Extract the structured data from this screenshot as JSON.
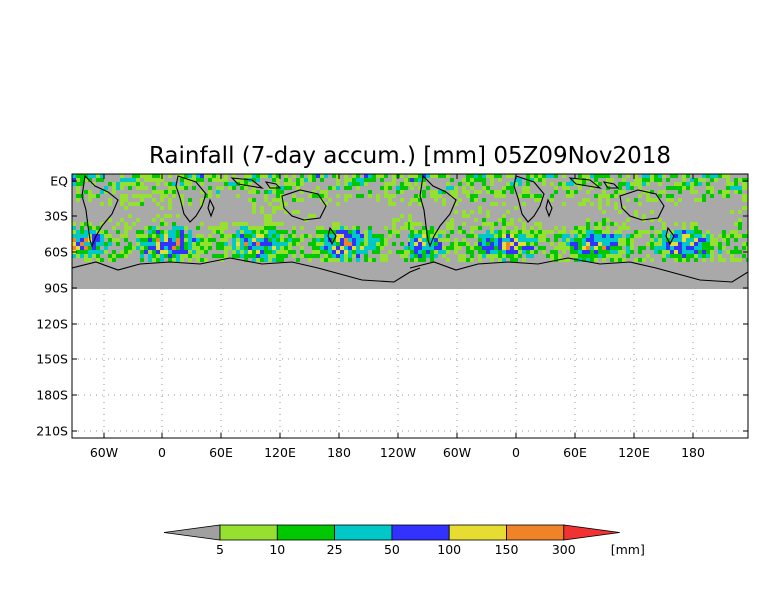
{
  "title": "Rainfall (7-day accum.) [mm] 05Z09Nov2018",
  "y_ticks": [
    "EQ",
    "30S",
    "60S",
    "90S",
    "120S",
    "150S",
    "180S",
    "210S"
  ],
  "x_ticks": [
    "60W",
    "0",
    "60E",
    "120E",
    "180",
    "120W",
    "60W",
    "0",
    "60E",
    "120E",
    "180"
  ],
  "colorbar": {
    "unit": "[mm]",
    "labels": [
      "5",
      "10",
      "25",
      "50",
      "100",
      "150",
      "300"
    ],
    "colors": [
      "#a0a0a0",
      "#96e032",
      "#00c800",
      "#00c8c8",
      "#3232ff",
      "#e6dc32",
      "#f08228",
      "#f03232"
    ]
  },
  "map": {
    "no_rain_color": "#a9a9a9",
    "coast_color": "#000000",
    "grid": "dotted"
  }
}
